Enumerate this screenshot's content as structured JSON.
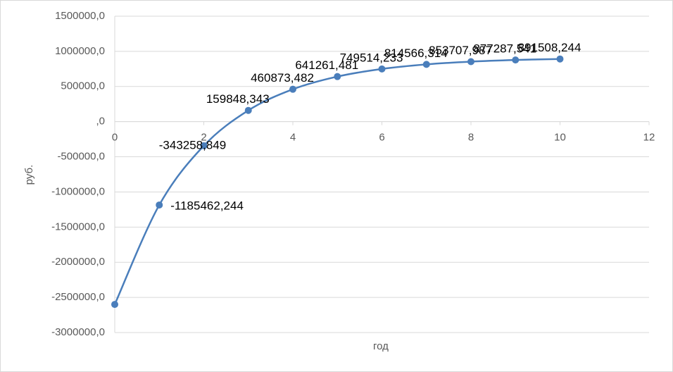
{
  "chart_data": {
    "type": "line",
    "smooth": true,
    "x_label": "год",
    "y_label": "руб.",
    "x": [
      0,
      1,
      2,
      3,
      4,
      5,
      6,
      7,
      8,
      9,
      10
    ],
    "series": [
      {
        "color": "#4a7ebb",
        "values": [
          -2600000,
          -1185462.244,
          -343258.849,
          159848.343,
          460873.482,
          641261.481,
          749514.233,
          814566.314,
          853707.987,
          877287.541,
          891508.244
        ],
        "value_labels": [
          null,
          "-1185462,244",
          "-343258,849",
          "159848,343",
          "460873,482",
          "641261,481",
          "749514,233",
          "814566,314",
          "853707,987",
          "877287,541",
          "891508,244"
        ]
      }
    ],
    "xlim": [
      0,
      12
    ],
    "xticks": [
      0,
      2,
      4,
      6,
      8,
      10,
      12
    ],
    "ylim": [
      -3000000,
      1500000
    ],
    "yticks": [
      {
        "value": -3000000,
        "label": "-3000000,0"
      },
      {
        "value": -2500000,
        "label": "-2500000,0"
      },
      {
        "value": -2000000,
        "label": "-2000000,0"
      },
      {
        "value": -1500000,
        "label": "-1500000,0"
      },
      {
        "value": -1000000,
        "label": "-1000000,0"
      },
      {
        "value": -500000,
        "label": "-500000,0"
      },
      {
        "value": 0,
        "label": ",0"
      },
      {
        "value": 500000,
        "label": "500000,0"
      },
      {
        "value": 1000000,
        "label": "1000000,0"
      },
      {
        "value": 1500000,
        "label": "1500000,0"
      }
    ],
    "grid": true
  }
}
